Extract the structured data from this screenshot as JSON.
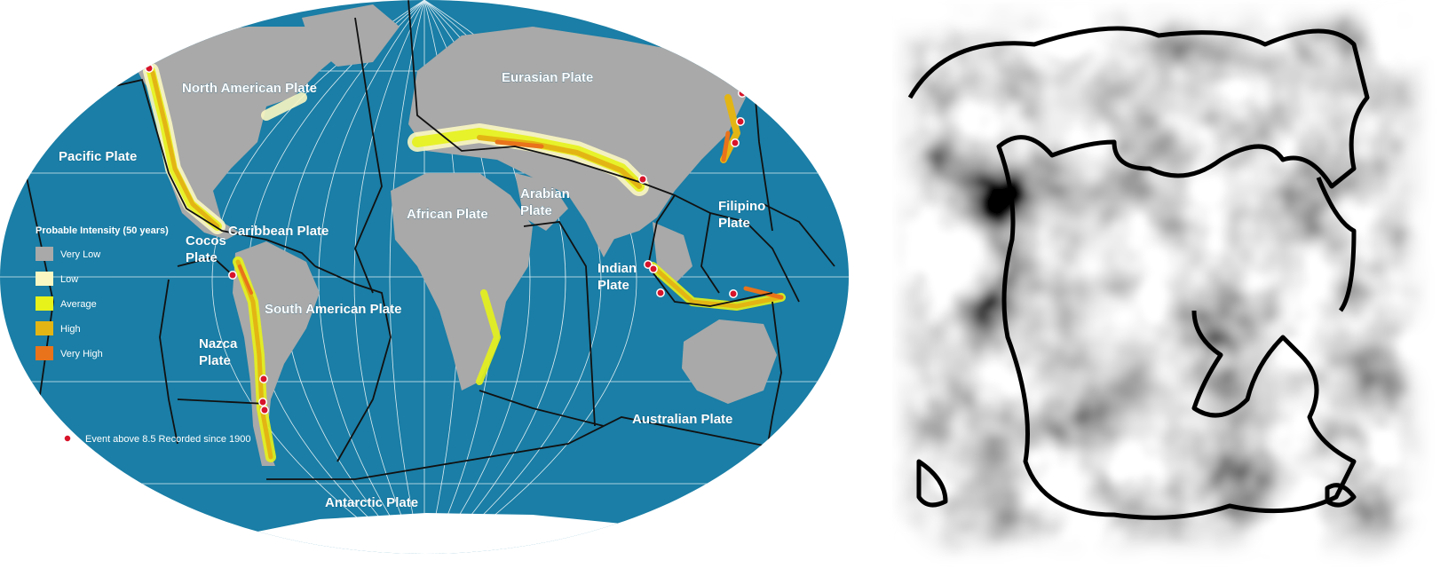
{
  "map": {
    "plates": [
      {
        "id": "north-american",
        "label": "North American Plate"
      },
      {
        "id": "eurasian",
        "label": "Eurasian Plate"
      },
      {
        "id": "pacific",
        "label": "Pacific Plate"
      },
      {
        "id": "caribbean",
        "label": "Caribbean Plate"
      },
      {
        "id": "cocos",
        "label": "Cocos\nPlate"
      },
      {
        "id": "african",
        "label": "African Plate"
      },
      {
        "id": "arabian",
        "label": "Arabian\nPlate"
      },
      {
        "id": "filipino",
        "label": "Filipino\nPlate"
      },
      {
        "id": "indian",
        "label": "Indian\nPlate"
      },
      {
        "id": "south-american",
        "label": "South American Plate"
      },
      {
        "id": "nazca",
        "label": "Nazca\nPlate"
      },
      {
        "id": "australian",
        "label": "Australian Plate"
      },
      {
        "id": "antarctic",
        "label": "Antarctic Plate"
      }
    ],
    "legend": {
      "title": "Probable Intensity (50 years)",
      "items": [
        {
          "label": "Very Low",
          "color": "#a9a9a9"
        },
        {
          "label": "Low",
          "color": "#fbf7c2"
        },
        {
          "label": "Average",
          "color": "#e6f21a"
        },
        {
          "label": "High",
          "color": "#e3b514"
        },
        {
          "label": "Very High",
          "color": "#e9731b"
        }
      ],
      "event_label": "Event above 8.5 Recorded since 1900"
    },
    "colors": {
      "ocean": "#1a7ea6",
      "land": "#a9a9a9",
      "boundary": "#111111",
      "event": "#d8142a"
    }
  }
}
